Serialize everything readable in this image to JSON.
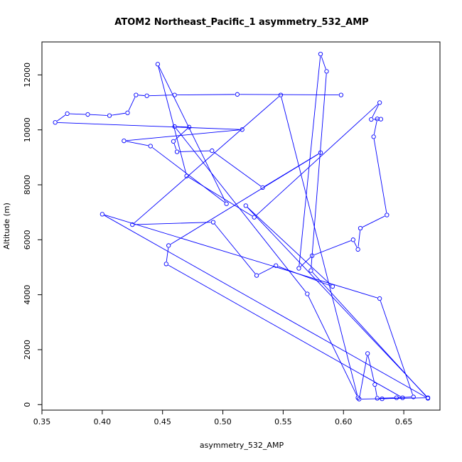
{
  "chart_data": {
    "type": "scatter",
    "title": "ATOM2 Northeast_Pacific_1 asymmetry_532_AMP",
    "xlabel": "asymmetry_532_AMP",
    "ylabel": "Altitude (m)",
    "xlim": [
      0.35,
      0.68
    ],
    "ylim": [
      -200,
      13200
    ],
    "xticks": [
      "0.35",
      "0.40",
      "0.45",
      "0.50",
      "0.55",
      "0.60",
      "0.65"
    ],
    "yticks": [
      "0",
      "2000",
      "4000",
      "6000",
      "8000",
      "10000",
      "12000"
    ],
    "grid": false,
    "legend": "none",
    "series_color": "#0000ff",
    "series": [
      {
        "x": [
          0.598,
          0.512,
          0.46,
          0.437,
          0.428,
          0.421,
          0.406,
          0.388,
          0.371,
          0.361,
          0.516,
          0.418,
          0.44,
          0.503,
          0.446,
          0.47,
          0.526,
          0.63,
          0.623,
          0.631,
          0.628,
          0.625,
          0.636,
          0.614,
          0.612,
          0.608,
          0.574,
          0.563,
          0.581,
          0.586,
          0.573,
          0.67,
          0.4,
          0.63,
          0.658,
          0.644,
          0.628,
          0.626,
          0.62,
          0.613,
          0.67,
          0.519,
          0.591,
          0.544,
          0.528,
          0.492,
          0.425,
          0.548,
          0.612,
          0.57,
          0.46,
          0.472,
          0.459,
          0.462,
          0.491,
          0.533,
          0.581,
          0.455,
          0.453,
          0.649,
          0.632
        ],
        "y": [
          11270,
          11290,
          11270,
          11240,
          11270,
          10620,
          10520,
          10560,
          10590,
          10270,
          10010,
          9600,
          9410,
          7310,
          12390,
          8320,
          6820,
          10990,
          10380,
          10390,
          10400,
          9750,
          6900,
          6420,
          5650,
          6000,
          5420,
          4960,
          12760,
          12130,
          4880,
          230,
          6930,
          3860,
          280,
          250,
          230,
          730,
          1860,
          200,
          250,
          7240,
          4300,
          5060,
          4700,
          6640,
          6550,
          11270,
          250,
          4030,
          10120,
          10100,
          9580,
          9200,
          9240,
          7900,
          9170,
          5790,
          5120,
          250,
          210
        ]
      }
    ]
  }
}
